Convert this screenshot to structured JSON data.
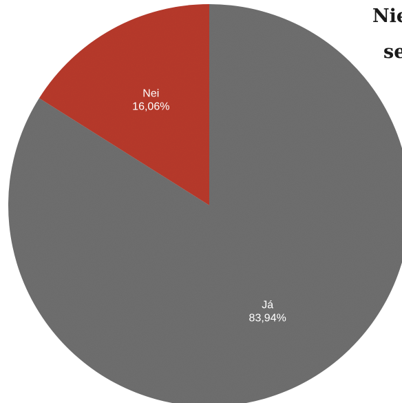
{
  "chart_data": {
    "type": "pie",
    "title_lines": [
      "Nie",
      "se"
    ],
    "slices": [
      {
        "label": "Nei",
        "value": 16.06,
        "value_text": "16,06%",
        "color": "#b83a2c"
      },
      {
        "label": "Já",
        "value": 83.94,
        "value_text": "83,94%",
        "color": "#6f6f6f"
      }
    ],
    "start": "top",
    "direction": "counterclockwise",
    "label_color": "#ffffff"
  }
}
